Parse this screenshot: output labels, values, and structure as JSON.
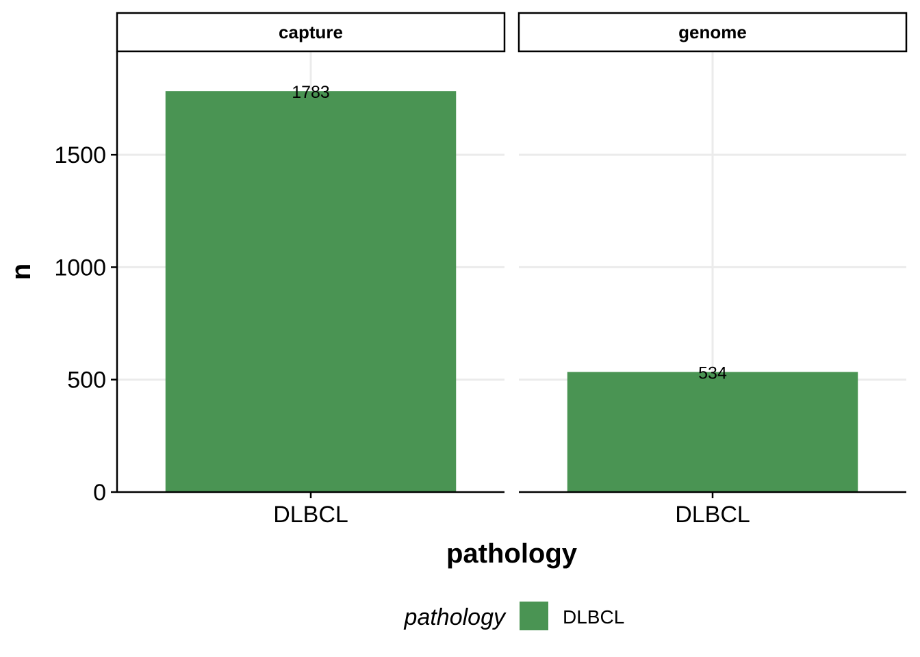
{
  "chart_data": {
    "type": "bar",
    "facet_by": "panel",
    "panels": [
      {
        "strip": "capture",
        "categories": [
          "DLBCL"
        ],
        "values": [
          1783
        ],
        "labels": [
          "1783"
        ]
      },
      {
        "strip": "genome",
        "categories": [
          "DLBCL"
        ],
        "values": [
          534
        ],
        "labels": [
          "534"
        ]
      }
    ],
    "xlabel": "pathology",
    "ylabel": "n",
    "ylim": [
      0,
      1960
    ],
    "yticks": [
      0,
      500,
      1000,
      1500
    ],
    "ytick_labels": [
      "0",
      "500",
      "1000",
      "1500"
    ],
    "grid": true,
    "bar_color": "#4A9453",
    "legend": {
      "title": "pathology",
      "placement": "bottom",
      "entries": [
        {
          "label": "DLBCL",
          "color": "#4A9453"
        }
      ]
    }
  }
}
